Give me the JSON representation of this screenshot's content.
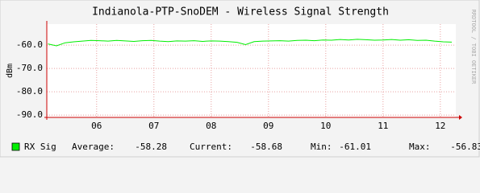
{
  "chart_data": {
    "type": "line",
    "title": "Indianola-PTP-SnoDEM - Wireless Signal Strength",
    "y_label": "dBm",
    "watermark": "RRDTOOL / TOBI OETIKER",
    "x": [
      5.15,
      5.3,
      5.45,
      5.6,
      5.75,
      5.9,
      6.05,
      6.2,
      6.35,
      6.5,
      6.65,
      6.8,
      6.95,
      7.1,
      7.25,
      7.4,
      7.55,
      7.7,
      7.85,
      8.0,
      8.15,
      8.3,
      8.45,
      8.6,
      8.75,
      8.9,
      9.05,
      9.2,
      9.35,
      9.5,
      9.65,
      9.8,
      9.95,
      10.1,
      10.25,
      10.4,
      10.55,
      10.7,
      10.85,
      11.0,
      11.15,
      11.3,
      11.45,
      11.6,
      11.75,
      11.9,
      12.05,
      12.2
    ],
    "series": [
      {
        "name": "RX Sig",
        "color": "#00ee00",
        "values": [
          -59.5,
          -60.3,
          -59.0,
          -58.6,
          -58.3,
          -58.0,
          -58.1,
          -58.3,
          -58.0,
          -58.2,
          -58.4,
          -58.1,
          -58.0,
          -58.3,
          -58.5,
          -58.2,
          -58.3,
          -58.1,
          -58.4,
          -58.2,
          -58.3,
          -58.5,
          -58.8,
          -59.8,
          -58.5,
          -58.3,
          -58.2,
          -58.1,
          -58.3,
          -58.0,
          -57.9,
          -58.1,
          -57.8,
          -57.9,
          -57.6,
          -57.8,
          -57.5,
          -57.7,
          -57.9,
          -57.8,
          -57.6,
          -57.9,
          -57.7,
          -58.0,
          -57.9,
          -58.3,
          -58.6,
          -58.7
        ]
      }
    ],
    "xlim": [
      5.13,
      12.27
    ],
    "xticks": [
      {
        "value": 6,
        "label": "06"
      },
      {
        "value": 7,
        "label": "07"
      },
      {
        "value": 8,
        "label": "08"
      },
      {
        "value": 9,
        "label": "09"
      },
      {
        "value": 10,
        "label": "10"
      },
      {
        "value": 11,
        "label": "11"
      },
      {
        "value": 12,
        "label": "12"
      }
    ],
    "ylim": [
      -91,
      -51
    ],
    "yticks": [
      {
        "value": -90,
        "label": "-90.0"
      },
      {
        "value": -80,
        "label": "-80.0"
      },
      {
        "value": -70,
        "label": "-70.0"
      },
      {
        "value": -60,
        "label": "-60.0"
      }
    ],
    "grid": true,
    "stats": [
      {
        "label": "Average:",
        "value": -58.28
      },
      {
        "label": "Current:",
        "value": -58.68
      },
      {
        "label": "Min:",
        "value": -61.01
      },
      {
        "label": "Max:",
        "value": -56.83
      }
    ]
  }
}
